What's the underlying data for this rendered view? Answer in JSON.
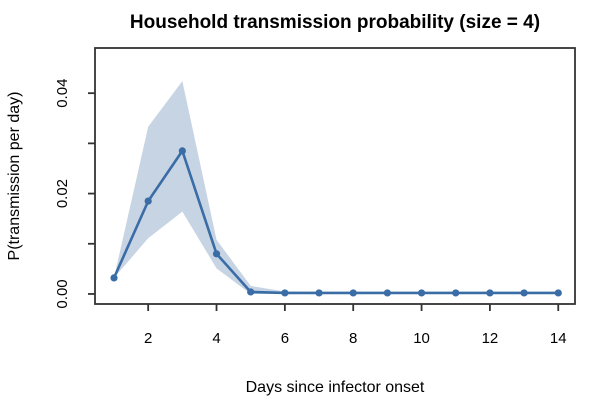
{
  "chart_data": {
    "type": "line",
    "title": "Household transmission probability (size = 4)",
    "xlabel": "Days since infector onset",
    "ylabel": "P(transmission per day)",
    "x": [
      1,
      2,
      3,
      4,
      5,
      6,
      7,
      8,
      9,
      10,
      11,
      12,
      13,
      14
    ],
    "series": [
      {
        "name": "transmission-probability",
        "values": [
          0.0032,
          0.0185,
          0.0285,
          0.008,
          0.0004,
          0.0002,
          0.0002,
          0.0002,
          0.0002,
          0.0002,
          0.0002,
          0.0002,
          0.0002,
          0.0002
        ],
        "color": "#3A6CA6",
        "marker": "circle"
      }
    ],
    "band": {
      "name": "confidence-interval",
      "lower": [
        0.0032,
        0.0111,
        0.0164,
        0.0051,
        0.0,
        0.0,
        0.0,
        0.0,
        0.0,
        0.0,
        0.0,
        0.0,
        0.0,
        0.0
      ],
      "upper": [
        0.0032,
        0.0333,
        0.0424,
        0.0108,
        0.0016,
        0.0005,
        0.0004,
        0.0004,
        0.0004,
        0.0004,
        0.0004,
        0.0004,
        0.0004,
        0.0004
      ],
      "color": "#C7D4E4"
    },
    "x_ticks": [
      {
        "v": 2,
        "label": "2"
      },
      {
        "v": 4,
        "label": "4"
      },
      {
        "v": 6,
        "label": "6"
      },
      {
        "v": 8,
        "label": "8"
      },
      {
        "v": 10,
        "label": "10"
      },
      {
        "v": 12,
        "label": "12"
      },
      {
        "v": 14,
        "label": "14"
      }
    ],
    "y_ticks": [
      {
        "v": 0.0,
        "label": "0.00"
      },
      {
        "v": 0.01,
        "label": ""
      },
      {
        "v": 0.02,
        "label": "0.02"
      },
      {
        "v": 0.03,
        "label": ""
      },
      {
        "v": 0.04,
        "label": "0.04"
      }
    ],
    "xlim": [
      0.444,
      14.49
    ],
    "ylim": [
      -0.002,
      0.049
    ],
    "grid": false,
    "legend": "none",
    "colors": {
      "line": "#3A6CA6",
      "band": "#C7D4E4",
      "axis": "#333333",
      "background": "#ffffff"
    }
  }
}
